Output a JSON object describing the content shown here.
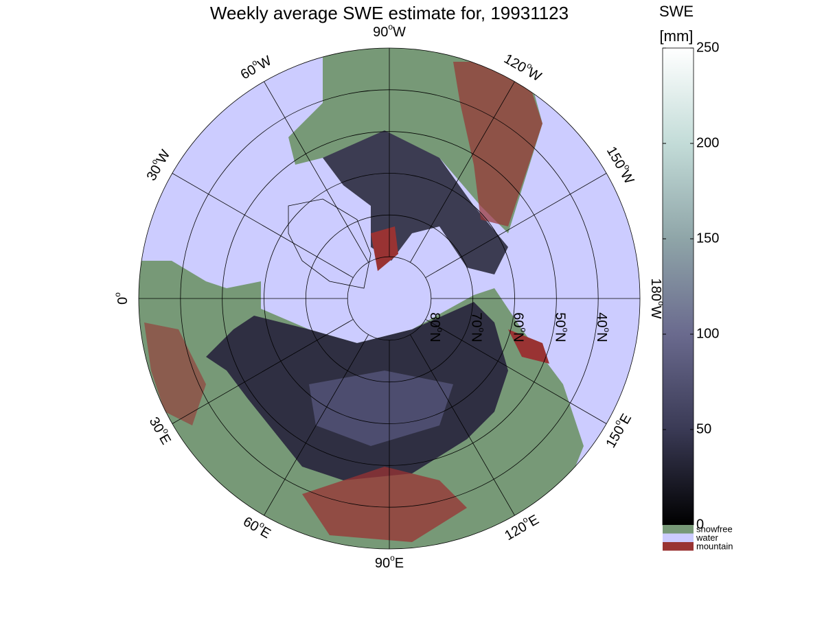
{
  "title": "Weekly average SWE estimate for, 19931123",
  "map": {
    "type": "polar",
    "parallels": [
      {
        "lat": 80,
        "label": "80",
        "sup": "o",
        "hem": "N"
      },
      {
        "lat": 70,
        "label": "70",
        "sup": "o",
        "hem": "N"
      },
      {
        "lat": 60,
        "label": "60",
        "sup": "o",
        "hem": "N"
      },
      {
        "lat": 50,
        "label": "50",
        "sup": "o",
        "hem": "N"
      },
      {
        "lat": 40,
        "label": "40",
        "sup": "o",
        "hem": "N"
      }
    ],
    "meridians": [
      {
        "lon": -90,
        "label": "90",
        "sup": "o",
        "hem": "W"
      },
      {
        "lon": -60,
        "label": "60",
        "sup": "o",
        "hem": "W"
      },
      {
        "lon": -120,
        "label": "120",
        "sup": "o",
        "hem": "W"
      },
      {
        "lon": -30,
        "label": "30",
        "sup": "o",
        "hem": "W"
      },
      {
        "lon": -150,
        "label": "150",
        "sup": "o",
        "hem": "W"
      },
      {
        "lon": 0,
        "label": "0",
        "sup": "o",
        "hem": ""
      },
      {
        "lon": 180,
        "label": "180",
        "sup": "o",
        "hem": "W"
      },
      {
        "lon": 30,
        "label": "30",
        "sup": "o",
        "hem": "E"
      },
      {
        "lon": 150,
        "label": "150",
        "sup": "o",
        "hem": "E"
      },
      {
        "lon": 60,
        "label": "60",
        "sup": "o",
        "hem": "E"
      },
      {
        "lon": 120,
        "label": "120",
        "sup": "o",
        "hem": "E"
      },
      {
        "lon": 90,
        "label": "90",
        "sup": "o",
        "hem": "E"
      }
    ]
  },
  "colorbar": {
    "label": "SWE",
    "units": "[mm]",
    "lim": [
      0,
      250
    ],
    "ticks": [
      0,
      50,
      100,
      150,
      200,
      250
    ],
    "colors": [
      "#000000",
      "#3a3a55",
      "#6a6a8e",
      "#8fa5a8",
      "#c3dcd8",
      "#ffffff"
    ]
  },
  "legend": [
    {
      "name": "snowfree",
      "color": "#779977"
    },
    {
      "name": "water",
      "color": "#ccccff"
    },
    {
      "name": "mountain",
      "color": "#993333"
    }
  ]
}
